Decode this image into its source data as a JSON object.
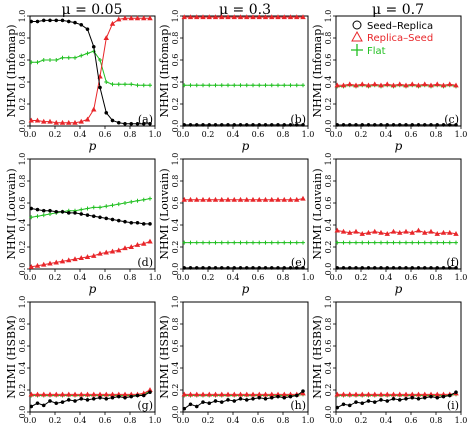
{
  "column_titles": [
    "μ = 0.05",
    "μ = 0.3",
    "μ = 0.7"
  ],
  "row_ylabels": [
    "NHMI (Infomap)",
    "NHMI (Louvain)",
    "NHMI (HSBM)"
  ],
  "xlabel": "p",
  "legend": {
    "placement": "top-right",
    "entries": [
      {
        "name": "Seed–Replica",
        "marker": "circle",
        "color": "#000000"
      },
      {
        "name": "Replica–Seed",
        "marker": "triangle",
        "color": "#e8262a"
      },
      {
        "name": "Flat",
        "marker": "plus",
        "color": "#22c022"
      }
    ]
  },
  "axes": {
    "xlim": [
      0,
      1.0
    ],
    "ylim": [
      0,
      1.0
    ],
    "xticks": [
      "0.0",
      "0.2",
      "0.4",
      "0.6",
      "0.8",
      "1.0"
    ],
    "yticks": [
      "0.0",
      "0.2",
      "0.4",
      "0.6",
      "0.8",
      "1.0"
    ]
  },
  "colors": {
    "seed_replica": "#000000",
    "replica_seed": "#e8262a",
    "flat": "#22c022"
  },
  "chart_data": [
    {
      "type": "line",
      "panel_label": "(a)",
      "row": 0,
      "col": 0,
      "x": [
        0.01,
        0.06,
        0.11,
        0.16,
        0.21,
        0.26,
        0.31,
        0.36,
        0.41,
        0.46,
        0.51,
        0.56,
        0.61,
        0.66,
        0.71,
        0.76,
        0.81,
        0.86,
        0.91,
        0.96
      ],
      "series": [
        {
          "key": "seed_replica",
          "values": [
            0.95,
            0.95,
            0.96,
            0.96,
            0.96,
            0.96,
            0.95,
            0.94,
            0.92,
            0.88,
            0.72,
            0.35,
            0.12,
            0.05,
            0.03,
            0.02,
            0.02,
            0.02,
            0.02,
            0.02
          ]
        },
        {
          "key": "replica_seed",
          "values": [
            0.05,
            0.05,
            0.04,
            0.04,
            0.03,
            0.03,
            0.03,
            0.03,
            0.04,
            0.06,
            0.15,
            0.45,
            0.8,
            0.93,
            0.97,
            0.98,
            0.98,
            0.98,
            0.98,
            0.98
          ]
        },
        {
          "key": "flat",
          "values": [
            0.58,
            0.58,
            0.6,
            0.6,
            0.6,
            0.62,
            0.62,
            0.62,
            0.64,
            0.66,
            0.68,
            0.6,
            0.4,
            0.38,
            0.38,
            0.38,
            0.38,
            0.37,
            0.37,
            0.37
          ]
        }
      ]
    },
    {
      "type": "line",
      "panel_label": "(b)",
      "row": 0,
      "col": 1,
      "x": [
        0.01,
        0.06,
        0.11,
        0.16,
        0.21,
        0.26,
        0.31,
        0.36,
        0.41,
        0.46,
        0.51,
        0.56,
        0.61,
        0.66,
        0.71,
        0.76,
        0.81,
        0.86,
        0.91,
        0.96
      ],
      "series": [
        {
          "key": "seed_replica",
          "values": [
            0.01,
            0.01,
            0.01,
            0.01,
            0.01,
            0.01,
            0.01,
            0.01,
            0.01,
            0.01,
            0.01,
            0.01,
            0.01,
            0.01,
            0.01,
            0.01,
            0.01,
            0.01,
            0.01,
            0.01
          ]
        },
        {
          "key": "replica_seed",
          "values": [
            0.99,
            0.99,
            0.99,
            0.99,
            0.99,
            0.99,
            0.99,
            0.99,
            0.99,
            0.99,
            0.99,
            0.99,
            0.99,
            0.99,
            0.99,
            0.99,
            0.99,
            0.99,
            0.99,
            0.99
          ]
        },
        {
          "key": "flat",
          "values": [
            0.37,
            0.37,
            0.37,
            0.37,
            0.37,
            0.37,
            0.37,
            0.37,
            0.37,
            0.37,
            0.37,
            0.37,
            0.37,
            0.37,
            0.37,
            0.37,
            0.37,
            0.37,
            0.37,
            0.37
          ]
        }
      ]
    },
    {
      "type": "line",
      "panel_label": "(c)",
      "row": 0,
      "col": 2,
      "x": [
        0.01,
        0.06,
        0.11,
        0.16,
        0.21,
        0.26,
        0.31,
        0.36,
        0.41,
        0.46,
        0.51,
        0.56,
        0.61,
        0.66,
        0.71,
        0.76,
        0.81,
        0.86,
        0.91,
        0.96
      ],
      "series": [
        {
          "key": "seed_replica",
          "values": [
            0.01,
            0.01,
            0.01,
            0.01,
            0.01,
            0.01,
            0.01,
            0.01,
            0.01,
            0.01,
            0.01,
            0.01,
            0.01,
            0.01,
            0.01,
            0.01,
            0.01,
            0.01,
            0.01,
            0.01
          ]
        },
        {
          "key": "replica_seed",
          "values": [
            0.37,
            0.37,
            0.38,
            0.37,
            0.38,
            0.37,
            0.38,
            0.37,
            0.38,
            0.37,
            0.38,
            0.37,
            0.38,
            0.37,
            0.38,
            0.37,
            0.38,
            0.37,
            0.38,
            0.37
          ]
        },
        {
          "key": "flat",
          "values": [
            0.36,
            0.36,
            0.37,
            0.36,
            0.37,
            0.36,
            0.37,
            0.36,
            0.37,
            0.36,
            0.37,
            0.36,
            0.37,
            0.36,
            0.37,
            0.36,
            0.37,
            0.36,
            0.37,
            0.36
          ]
        }
      ]
    },
    {
      "type": "line",
      "panel_label": "(d)",
      "row": 1,
      "col": 0,
      "x": [
        0.01,
        0.06,
        0.11,
        0.16,
        0.21,
        0.26,
        0.31,
        0.36,
        0.41,
        0.46,
        0.51,
        0.56,
        0.61,
        0.66,
        0.71,
        0.76,
        0.81,
        0.86,
        0.91,
        0.96
      ],
      "series": [
        {
          "key": "seed_replica",
          "values": [
            0.55,
            0.54,
            0.53,
            0.53,
            0.52,
            0.52,
            0.51,
            0.51,
            0.5,
            0.49,
            0.48,
            0.47,
            0.46,
            0.45,
            0.44,
            0.43,
            0.42,
            0.42,
            0.41,
            0.41
          ]
        },
        {
          "key": "replica_seed",
          "values": [
            0.02,
            0.03,
            0.04,
            0.05,
            0.06,
            0.07,
            0.08,
            0.09,
            0.1,
            0.11,
            0.12,
            0.14,
            0.15,
            0.16,
            0.17,
            0.19,
            0.2,
            0.22,
            0.23,
            0.25
          ]
        },
        {
          "key": "flat",
          "values": [
            0.47,
            0.48,
            0.49,
            0.5,
            0.51,
            0.52,
            0.53,
            0.53,
            0.54,
            0.55,
            0.56,
            0.56,
            0.57,
            0.58,
            0.59,
            0.6,
            0.61,
            0.62,
            0.63,
            0.64
          ]
        }
      ]
    },
    {
      "type": "line",
      "panel_label": "(e)",
      "row": 1,
      "col": 1,
      "x": [
        0.01,
        0.06,
        0.11,
        0.16,
        0.21,
        0.26,
        0.31,
        0.36,
        0.41,
        0.46,
        0.51,
        0.56,
        0.61,
        0.66,
        0.71,
        0.76,
        0.81,
        0.86,
        0.91,
        0.96
      ],
      "series": [
        {
          "key": "seed_replica",
          "values": [
            0.01,
            0.01,
            0.01,
            0.01,
            0.01,
            0.01,
            0.01,
            0.01,
            0.01,
            0.01,
            0.01,
            0.01,
            0.01,
            0.01,
            0.01,
            0.01,
            0.01,
            0.01,
            0.01,
            0.01
          ]
        },
        {
          "key": "replica_seed",
          "values": [
            0.63,
            0.63,
            0.63,
            0.63,
            0.63,
            0.63,
            0.63,
            0.63,
            0.63,
            0.63,
            0.63,
            0.63,
            0.63,
            0.63,
            0.63,
            0.63,
            0.63,
            0.63,
            0.63,
            0.64
          ]
        },
        {
          "key": "flat",
          "values": [
            0.24,
            0.24,
            0.24,
            0.24,
            0.24,
            0.24,
            0.24,
            0.24,
            0.24,
            0.24,
            0.24,
            0.24,
            0.24,
            0.24,
            0.24,
            0.24,
            0.24,
            0.24,
            0.24,
            0.24
          ]
        }
      ]
    },
    {
      "type": "line",
      "panel_label": "(f)",
      "row": 1,
      "col": 2,
      "x": [
        0.01,
        0.06,
        0.11,
        0.16,
        0.21,
        0.26,
        0.31,
        0.36,
        0.41,
        0.46,
        0.51,
        0.56,
        0.61,
        0.66,
        0.71,
        0.76,
        0.81,
        0.86,
        0.91,
        0.96
      ],
      "series": [
        {
          "key": "seed_replica",
          "values": [
            0.01,
            0.01,
            0.01,
            0.01,
            0.01,
            0.01,
            0.01,
            0.01,
            0.01,
            0.01,
            0.01,
            0.01,
            0.01,
            0.01,
            0.01,
            0.01,
            0.01,
            0.01,
            0.01,
            0.01
          ]
        },
        {
          "key": "replica_seed",
          "values": [
            0.35,
            0.34,
            0.33,
            0.34,
            0.32,
            0.33,
            0.34,
            0.33,
            0.32,
            0.34,
            0.33,
            0.34,
            0.33,
            0.35,
            0.33,
            0.34,
            0.32,
            0.33,
            0.33,
            0.32
          ]
        },
        {
          "key": "flat",
          "values": [
            0.24,
            0.24,
            0.24,
            0.24,
            0.24,
            0.24,
            0.24,
            0.24,
            0.24,
            0.24,
            0.24,
            0.24,
            0.24,
            0.24,
            0.24,
            0.24,
            0.24,
            0.24,
            0.24,
            0.24
          ]
        }
      ]
    },
    {
      "type": "line",
      "panel_label": "(g)",
      "row": 2,
      "col": 0,
      "x": [
        0.01,
        0.06,
        0.11,
        0.16,
        0.21,
        0.26,
        0.31,
        0.36,
        0.41,
        0.46,
        0.51,
        0.56,
        0.61,
        0.66,
        0.71,
        0.76,
        0.81,
        0.86,
        0.91,
        0.96
      ],
      "series": [
        {
          "key": "seed_replica",
          "values": [
            0.05,
            0.08,
            0.06,
            0.1,
            0.08,
            0.09,
            0.11,
            0.1,
            0.12,
            0.11,
            0.12,
            0.13,
            0.12,
            0.13,
            0.14,
            0.13,
            0.14,
            0.15,
            0.15,
            0.18
          ]
        },
        {
          "key": "replica_seed",
          "values": [
            0.16,
            0.16,
            0.16,
            0.16,
            0.16,
            0.16,
            0.16,
            0.16,
            0.16,
            0.16,
            0.16,
            0.16,
            0.16,
            0.16,
            0.16,
            0.16,
            0.16,
            0.16,
            0.17,
            0.2
          ]
        },
        {
          "key": "flat",
          "values": [
            0.15,
            0.15,
            0.15,
            0.15,
            0.15,
            0.15,
            0.15,
            0.15,
            0.15,
            0.15,
            0.15,
            0.15,
            0.15,
            0.15,
            0.15,
            0.15,
            0.15,
            0.15,
            0.16,
            0.19
          ]
        }
      ]
    },
    {
      "type": "line",
      "panel_label": "(h)",
      "row": 2,
      "col": 1,
      "x": [
        0.01,
        0.06,
        0.11,
        0.16,
        0.21,
        0.26,
        0.31,
        0.36,
        0.41,
        0.46,
        0.51,
        0.56,
        0.61,
        0.66,
        0.71,
        0.76,
        0.81,
        0.86,
        0.91,
        0.96
      ],
      "series": [
        {
          "key": "seed_replica",
          "values": [
            0.03,
            0.07,
            0.05,
            0.09,
            0.08,
            0.1,
            0.09,
            0.11,
            0.1,
            0.12,
            0.11,
            0.12,
            0.13,
            0.12,
            0.13,
            0.14,
            0.13,
            0.14,
            0.15,
            0.19
          ]
        },
        {
          "key": "replica_seed",
          "values": [
            0.16,
            0.16,
            0.16,
            0.16,
            0.16,
            0.16,
            0.16,
            0.16,
            0.16,
            0.16,
            0.16,
            0.16,
            0.16,
            0.16,
            0.16,
            0.16,
            0.16,
            0.16,
            0.16,
            0.17
          ]
        },
        {
          "key": "flat",
          "values": [
            0.15,
            0.15,
            0.15,
            0.15,
            0.15,
            0.15,
            0.15,
            0.15,
            0.15,
            0.15,
            0.15,
            0.15,
            0.15,
            0.15,
            0.15,
            0.15,
            0.15,
            0.15,
            0.15,
            0.16
          ]
        }
      ]
    },
    {
      "type": "line",
      "panel_label": "(i)",
      "row": 2,
      "col": 2,
      "x": [
        0.01,
        0.06,
        0.11,
        0.16,
        0.21,
        0.26,
        0.31,
        0.36,
        0.41,
        0.46,
        0.51,
        0.56,
        0.61,
        0.66,
        0.71,
        0.76,
        0.81,
        0.86,
        0.91,
        0.96
      ],
      "series": [
        {
          "key": "seed_replica",
          "values": [
            0.04,
            0.07,
            0.06,
            0.09,
            0.08,
            0.1,
            0.09,
            0.11,
            0.1,
            0.12,
            0.11,
            0.12,
            0.13,
            0.12,
            0.13,
            0.14,
            0.13,
            0.14,
            0.15,
            0.18
          ]
        },
        {
          "key": "replica_seed",
          "values": [
            0.16,
            0.16,
            0.16,
            0.16,
            0.16,
            0.16,
            0.16,
            0.16,
            0.16,
            0.16,
            0.16,
            0.16,
            0.16,
            0.16,
            0.16,
            0.16,
            0.16,
            0.16,
            0.16,
            0.17
          ]
        },
        {
          "key": "flat",
          "values": [
            0.15,
            0.15,
            0.15,
            0.15,
            0.15,
            0.15,
            0.15,
            0.15,
            0.15,
            0.15,
            0.15,
            0.15,
            0.15,
            0.15,
            0.15,
            0.15,
            0.15,
            0.15,
            0.15,
            0.16
          ]
        }
      ]
    }
  ]
}
